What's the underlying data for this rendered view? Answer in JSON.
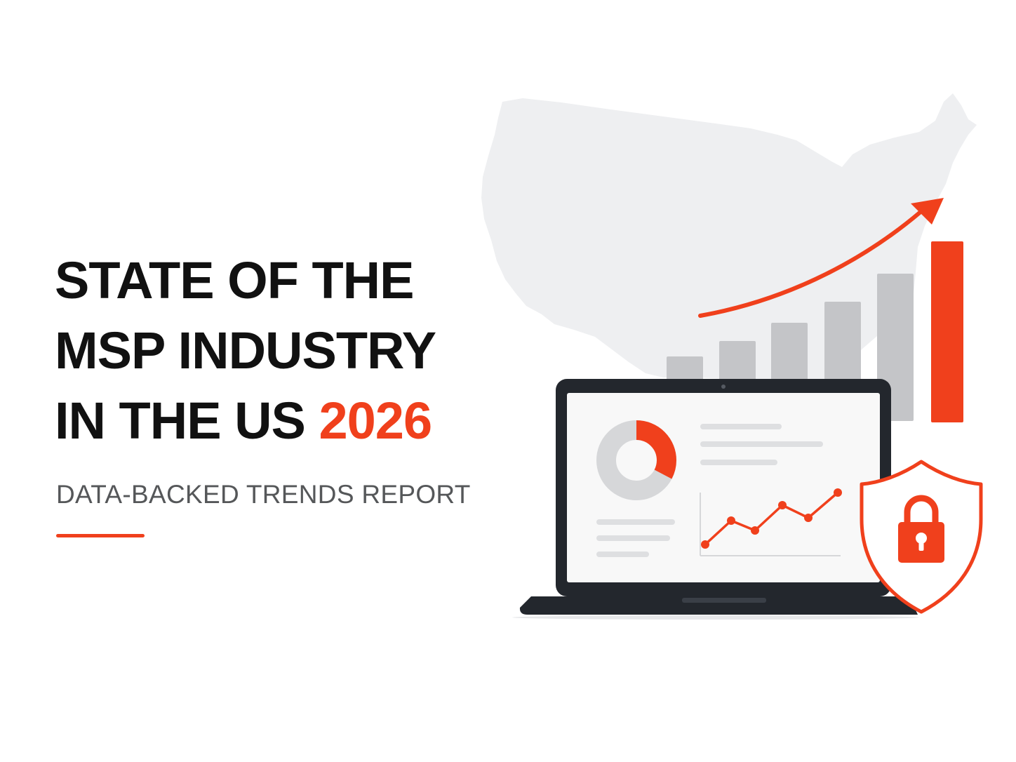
{
  "hero": {
    "title_line1": "STATE OF THE",
    "title_line2": "MSP INDUSTRY",
    "title_line3_prefix": "IN THE US ",
    "title_line3_accent": "2026",
    "subtitle": "DATA-BACKED TRENDS REPORT"
  },
  "colors": {
    "accent": "#f0401c",
    "title_text": "#111111",
    "subtitle_text": "#555759",
    "map_fill": "#eeeff1",
    "bar_gray": "#c4c5c8",
    "laptop_frame": "#23272d"
  },
  "icons": [
    "us-map-silhouette",
    "growth-bar-chart-icon",
    "trend-arrow-icon",
    "laptop-icon",
    "donut-chart-icon",
    "line-chart-icon",
    "shield-icon",
    "padlock-icon"
  ]
}
